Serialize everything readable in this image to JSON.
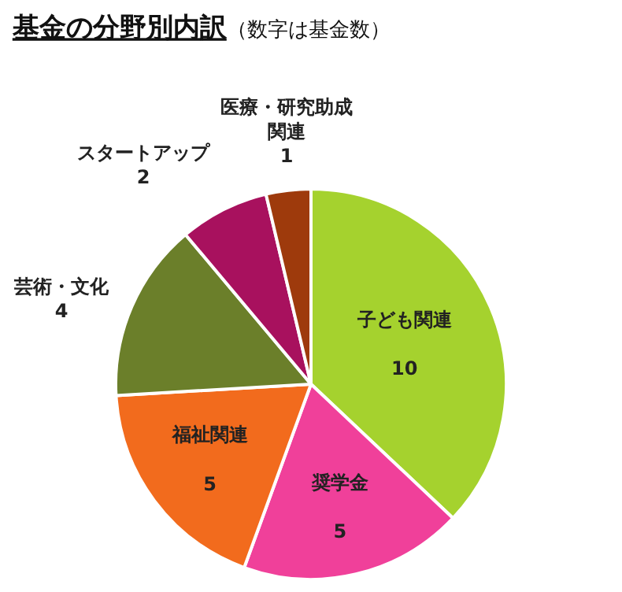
{
  "chart_data": {
    "type": "pie",
    "title": "基金の分野別内訳",
    "subtitle": "（数字は基金数）",
    "categories": [
      "子ども関連",
      "奨学金",
      "福祉関連",
      "芸術・文化",
      "スタートアップ",
      "医療・研究助成関連"
    ],
    "values": [
      10,
      5,
      5,
      4,
      2,
      1
    ],
    "colors": [
      "#a5d22e",
      "#f0409a",
      "#f26b1d",
      "#6b7f2a",
      "#a8115e",
      "#9e3a0c"
    ],
    "data_labels": true,
    "legend": false
  }
}
